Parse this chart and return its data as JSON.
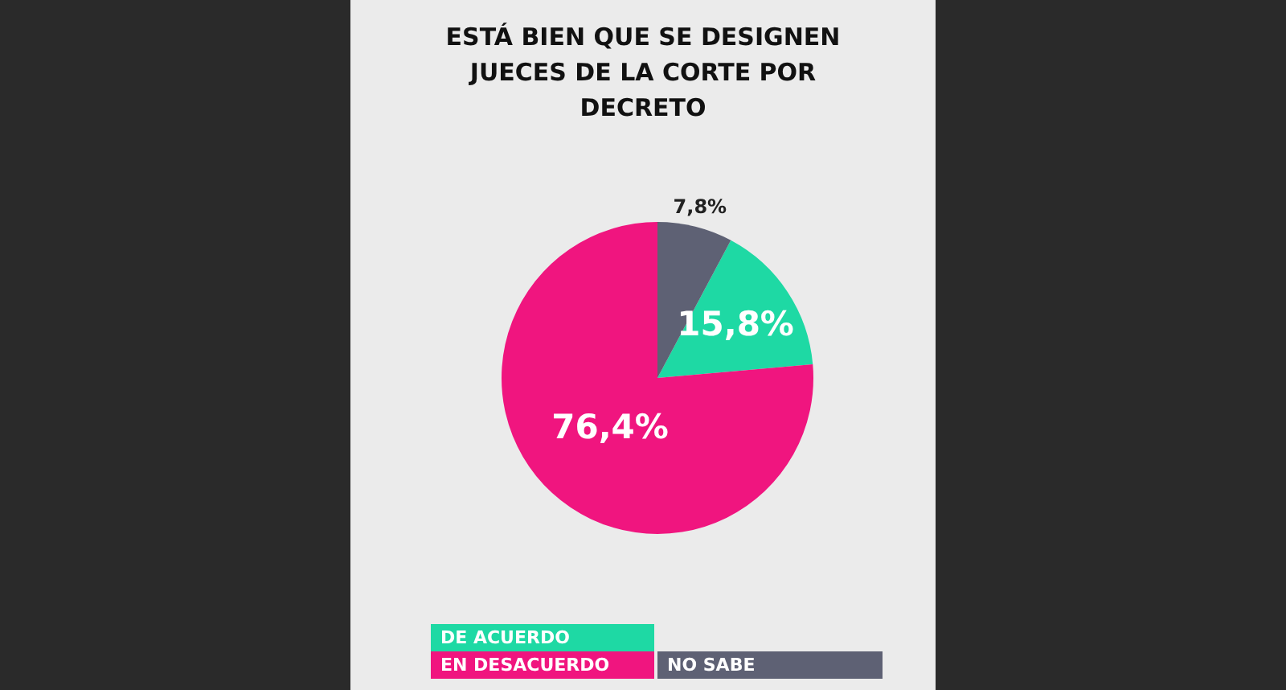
{
  "chart_data": {
    "type": "pie",
    "title": "ESTÁ BIEN QUE SE DESIGNEN JUECES DE LA CORTE POR DECRETO",
    "categories": [
      "DE ACUERDO",
      "EN DESACUERDO",
      "NO SABE"
    ],
    "values": [
      15.8,
      76.4,
      7.8
    ],
    "colors": [
      "#1ed9a4",
      "#f0157f",
      "#5e6174"
    ],
    "value_labels": [
      "15,8%",
      "76,4%",
      "7,8%"
    ],
    "legend": "bottom"
  }
}
